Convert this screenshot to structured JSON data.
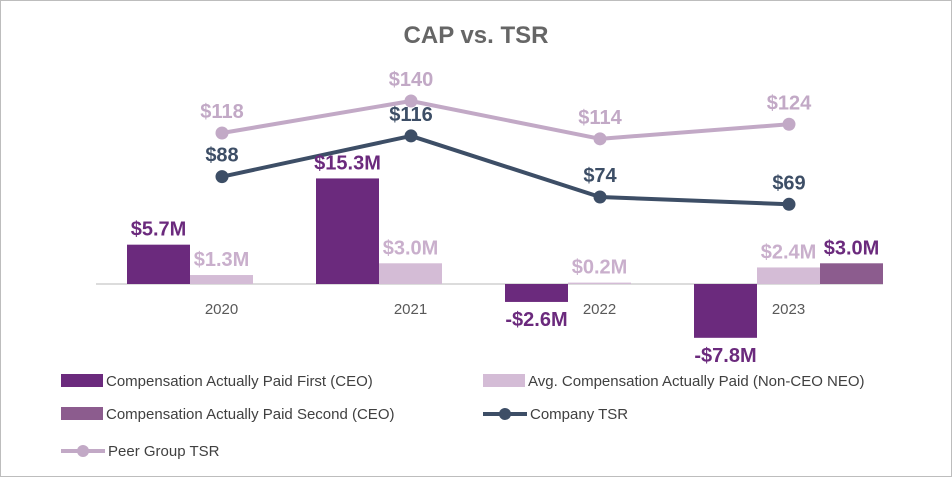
{
  "chart_data": {
    "type": "bar",
    "title": "CAP vs. TSR",
    "categories": [
      "2020",
      "2021",
      "2022",
      "2023"
    ],
    "series": [
      {
        "name": "Compensation Actually Paid First (CEO)",
        "kind": "bar",
        "color": "#6b2a7d",
        "label_color": "#6b2a7d",
        "values": [
          5.7,
          15.3,
          -2.6,
          -7.8
        ],
        "labels": [
          "$5.7M",
          "$15.3M",
          "-$2.6M",
          "-$7.8M"
        ]
      },
      {
        "name": "Avg. Compensation Actually Paid (Non-CEO NEO)",
        "kind": "bar",
        "color": "#d4bcd6",
        "label_color": "#c9afcc",
        "values": [
          1.3,
          3.0,
          0.2,
          2.4
        ],
        "labels": [
          "$1.3M",
          "$3.0M",
          "$0.2M",
          "$2.4M"
        ]
      },
      {
        "name": "Compensation Actually Paid Second (CEO)",
        "kind": "bar",
        "color": "#8c5c8e",
        "label_color": "#6b2a7d",
        "values": [
          null,
          null,
          null,
          3.0
        ],
        "labels": [
          "",
          "",
          "",
          "$3.0M"
        ]
      },
      {
        "name": "Company TSR",
        "kind": "line",
        "color": "#3d4e66",
        "label_color": "#3d4e66",
        "values": [
          88,
          116,
          74,
          69
        ],
        "labels": [
          "$88",
          "$116",
          "$74",
          "$69"
        ]
      },
      {
        "name": "Peer Group TSR",
        "kind": "line",
        "color": "#c2a9c6",
        "label_color": "#c2a9c6",
        "values": [
          118,
          140,
          114,
          124
        ],
        "labels": [
          "$118",
          "$140",
          "$114",
          "$124"
        ]
      }
    ],
    "legend": "bottom-left",
    "grid": false
  }
}
